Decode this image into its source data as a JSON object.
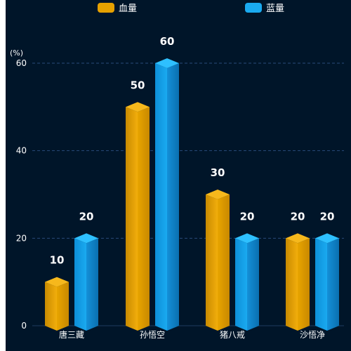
{
  "chart_data": {
    "type": "bar",
    "categories": [
      "唐三藏",
      "孙悟空",
      "猪八戒",
      "沙悟净"
    ],
    "series": [
      {
        "name": "血量",
        "values": [
          10,
          50,
          30,
          20
        ],
        "color": "#E6A100"
      },
      {
        "name": "蓝量",
        "values": [
          20,
          60,
          20,
          20
        ],
        "color": "#1AAAF0"
      }
    ],
    "yunit": "(%)",
    "ylim": [
      0,
      60
    ],
    "yticks": [
      0,
      20,
      40,
      60
    ],
    "ytick_labels": [
      "0",
      "20",
      "40",
      "60"
    ],
    "grid": true,
    "legend_position": "top",
    "style": "3d-cylinder-bars",
    "background_color": "#001529",
    "axis_color": "#1E3A5F",
    "text_color": "#FFFFFF"
  }
}
